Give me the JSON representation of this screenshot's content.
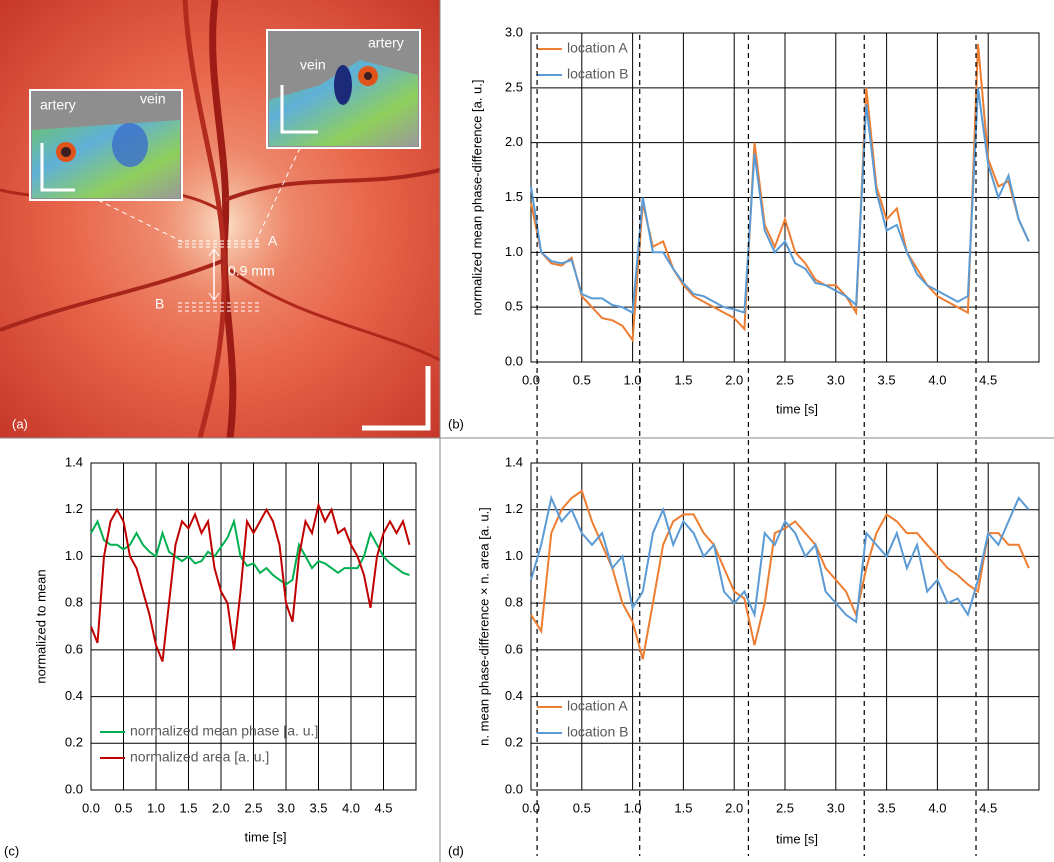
{
  "image": {
    "label": "(a)",
    "left_inset": {
      "artery": "artery",
      "vein": "vein"
    },
    "right_inset": {
      "vein": "vein",
      "artery": "artery"
    },
    "location_a": "A",
    "location_b": "B",
    "distance": "0.9 mm"
  },
  "chart_data": [
    {
      "type": "line",
      "label": "(b)",
      "x_label": "time [s]",
      "y_label": "normalized mean phase-difference [a. u.]",
      "x": [
        0.0,
        0.1,
        0.2,
        0.3,
        0.4,
        0.5,
        0.6,
        0.7,
        0.8,
        0.9,
        1.0,
        1.1,
        1.2,
        1.3,
        1.4,
        1.5,
        1.6,
        1.7,
        1.8,
        1.9,
        2.0,
        2.1,
        2.2,
        2.3,
        2.4,
        2.5,
        2.6,
        2.7,
        2.8,
        2.9,
        3.0,
        3.1,
        3.2,
        3.3,
        3.4,
        3.5,
        3.6,
        3.7,
        3.8,
        3.9,
        4.0,
        4.1,
        4.2,
        4.3,
        4.4,
        4.5,
        4.6,
        4.7,
        4.8,
        4.9
      ],
      "series": [
        {
          "name": "location A",
          "color": "#ed7d31",
          "values": [
            1.45,
            1.0,
            0.9,
            0.88,
            0.95,
            0.6,
            0.5,
            0.4,
            0.38,
            0.33,
            0.2,
            1.45,
            1.05,
            1.1,
            0.85,
            0.7,
            0.6,
            0.55,
            0.5,
            0.45,
            0.4,
            0.3,
            2.0,
            1.25,
            1.05,
            1.3,
            1.0,
            0.9,
            0.75,
            0.7,
            0.7,
            0.6,
            0.45,
            2.5,
            1.6,
            1.3,
            1.4,
            1.0,
            0.85,
            0.7,
            0.6,
            0.55,
            0.5,
            0.45,
            2.9,
            1.85,
            1.6,
            1.65,
            1.3,
            1.1
          ]
        },
        {
          "name": "location B",
          "color": "#5b9bd5",
          "values": [
            1.6,
            1.0,
            0.92,
            0.9,
            0.93,
            0.62,
            0.58,
            0.58,
            0.52,
            0.5,
            0.45,
            1.5,
            1.0,
            1.0,
            0.85,
            0.72,
            0.62,
            0.6,
            0.55,
            0.5,
            0.48,
            0.45,
            1.9,
            1.2,
            1.0,
            1.1,
            0.9,
            0.85,
            0.72,
            0.7,
            0.65,
            0.6,
            0.52,
            2.35,
            1.55,
            1.2,
            1.25,
            1.0,
            0.8,
            0.7,
            0.65,
            0.6,
            0.55,
            0.6,
            2.5,
            1.8,
            1.5,
            1.7,
            1.3,
            1.1
          ]
        }
      ],
      "xlim": [
        0,
        5
      ],
      "xticks": [
        {
          "value": 0,
          "label": "0.0"
        },
        0.5,
        {
          "value": 1,
          "label": "1.0"
        },
        1.5,
        {
          "value": 2,
          "label": "2.0"
        },
        2.5,
        {
          "value": 3,
          "label": "3.0"
        },
        3.5,
        {
          "value": 4,
          "label": "4.0"
        },
        4.5
      ],
      "ylim": [
        0,
        3
      ],
      "yticks": [
        {
          "value": 0,
          "label": "0.0"
        },
        0.5,
        {
          "value": 1,
          "label": "1.0"
        },
        1.5,
        {
          "value": 2,
          "label": "2.0"
        },
        2.5,
        {
          "value": 3,
          "label": "3.0"
        }
      ],
      "grid": true,
      "legend": "upper left",
      "vlines": [
        0.06,
        1.07,
        2.14,
        3.28,
        4.38
      ]
    },
    {
      "type": "line",
      "label": "(c)",
      "x_label": "time [s]",
      "y_label": "normalized to mean",
      "x": [
        0.0,
        0.1,
        0.2,
        0.3,
        0.4,
        0.5,
        0.6,
        0.7,
        0.8,
        0.9,
        1.0,
        1.1,
        1.2,
        1.3,
        1.4,
        1.5,
        1.6,
        1.7,
        1.8,
        1.9,
        2.0,
        2.1,
        2.2,
        2.3,
        2.4,
        2.5,
        2.6,
        2.7,
        2.8,
        2.9,
        3.0,
        3.1,
        3.2,
        3.3,
        3.4,
        3.5,
        3.6,
        3.7,
        3.8,
        3.9,
        4.0,
        4.1,
        4.2,
        4.3,
        4.4,
        4.5,
        4.6,
        4.7,
        4.8,
        4.9
      ],
      "series": [
        {
          "name": "normalized mean phase [a. u.]",
          "color": "#00b050",
          "values": [
            1.1,
            1.15,
            1.07,
            1.05,
            1.05,
            1.03,
            1.05,
            1.1,
            1.05,
            1.02,
            1.0,
            1.1,
            1.02,
            1.0,
            0.98,
            1.0,
            0.97,
            0.98,
            1.02,
            1.0,
            1.04,
            1.08,
            1.15,
            1.0,
            0.96,
            0.97,
            0.93,
            0.95,
            0.92,
            0.9,
            0.88,
            0.9,
            1.05,
            1.0,
            0.95,
            0.98,
            0.97,
            0.95,
            0.93,
            0.95,
            0.95,
            0.95,
            1.0,
            1.1,
            1.05,
            1.0,
            0.97,
            0.95,
            0.93,
            0.92
          ]
        },
        {
          "name": "normalized area [a. u.]",
          "color": "#c00000",
          "values": [
            0.7,
            0.63,
            1.0,
            1.15,
            1.2,
            1.15,
            1.0,
            0.95,
            0.85,
            0.75,
            0.62,
            0.55,
            0.8,
            1.05,
            1.15,
            1.12,
            1.18,
            1.1,
            1.15,
            0.95,
            0.85,
            0.8,
            0.6,
            0.85,
            1.15,
            1.1,
            1.15,
            1.2,
            1.15,
            1.05,
            0.8,
            0.72,
            1.0,
            1.15,
            1.1,
            1.22,
            1.15,
            1.2,
            1.1,
            1.12,
            1.05,
            1.0,
            0.92,
            0.78,
            1.0,
            1.1,
            1.15,
            1.1,
            1.15,
            1.05
          ]
        }
      ],
      "xlim": [
        0,
        5
      ],
      "xticks": [
        {
          "value": 0,
          "label": "0.0"
        },
        0.5,
        {
          "value": 1,
          "label": "1.0"
        },
        1.5,
        {
          "value": 2,
          "label": "2.0"
        },
        2.5,
        {
          "value": 3,
          "label": "3.0"
        },
        3.5,
        {
          "value": 4,
          "label": "4.0"
        },
        4.5
      ],
      "ylim": [
        0,
        1.4
      ],
      "yticks": [
        {
          "value": 0,
          "label": "0.0"
        },
        0.2,
        0.4,
        0.6,
        0.8,
        {
          "value": 1,
          "label": "1.0"
        },
        1.2,
        1.4
      ],
      "grid": true,
      "legend": "lower left"
    },
    {
      "type": "line",
      "label": "(d)",
      "x_label": "time [s]",
      "y_label": "n. mean phase-difference × n. area [a. u.]",
      "x": [
        0.0,
        0.1,
        0.2,
        0.3,
        0.4,
        0.5,
        0.6,
        0.7,
        0.8,
        0.9,
        1.0,
        1.1,
        1.2,
        1.3,
        1.4,
        1.5,
        1.6,
        1.7,
        1.8,
        1.9,
        2.0,
        2.1,
        2.2,
        2.3,
        2.4,
        2.5,
        2.6,
        2.7,
        2.8,
        2.9,
        3.0,
        3.1,
        3.2,
        3.3,
        3.4,
        3.5,
        3.6,
        3.7,
        3.8,
        3.9,
        4.0,
        4.1,
        4.2,
        4.3,
        4.4,
        4.5,
        4.6,
        4.7,
        4.8,
        4.9
      ],
      "series": [
        {
          "name": "location A",
          "color": "#ed7d31",
          "values": [
            0.75,
            0.68,
            1.1,
            1.2,
            1.25,
            1.28,
            1.15,
            1.05,
            0.95,
            0.8,
            0.72,
            0.56,
            0.8,
            1.05,
            1.15,
            1.18,
            1.18,
            1.1,
            1.05,
            0.95,
            0.85,
            0.82,
            0.62,
            0.8,
            1.1,
            1.12,
            1.15,
            1.1,
            1.05,
            0.95,
            0.9,
            0.85,
            0.75,
            0.95,
            1.1,
            1.18,
            1.15,
            1.1,
            1.1,
            1.05,
            1.0,
            0.95,
            0.92,
            0.88,
            0.85,
            1.1,
            1.1,
            1.05,
            1.05,
            0.95
          ]
        },
        {
          "name": "location B",
          "color": "#5b9bd5",
          "values": [
            0.9,
            1.05,
            1.25,
            1.15,
            1.2,
            1.1,
            1.05,
            1.1,
            0.95,
            1.0,
            0.78,
            0.85,
            1.1,
            1.2,
            1.05,
            1.15,
            1.1,
            1.0,
            1.05,
            0.85,
            0.8,
            0.85,
            0.75,
            1.1,
            1.05,
            1.15,
            1.1,
            1.0,
            1.05,
            0.85,
            0.8,
            0.75,
            0.72,
            1.1,
            1.05,
            1.0,
            1.1,
            0.95,
            1.05,
            0.85,
            0.9,
            0.8,
            0.82,
            0.75,
            0.9,
            1.1,
            1.05,
            1.15,
            1.25,
            1.2
          ]
        }
      ],
      "xlim": [
        0,
        5
      ],
      "xticks": [
        {
          "value": 0,
          "label": "0.0"
        },
        0.5,
        {
          "value": 1,
          "label": "1.0"
        },
        1.5,
        {
          "value": 2,
          "label": "2.0"
        },
        2.5,
        {
          "value": 3,
          "label": "3.0"
        },
        3.5,
        {
          "value": 4,
          "label": "4.0"
        },
        4.5
      ],
      "ylim": [
        0,
        1.4
      ],
      "yticks": [
        {
          "value": 0,
          "label": "0.0"
        },
        0.2,
        0.4,
        0.6,
        0.8,
        {
          "value": 1,
          "label": "1.0"
        },
        1.2,
        1.4
      ],
      "grid": true,
      "legend": "lower left"
    }
  ]
}
